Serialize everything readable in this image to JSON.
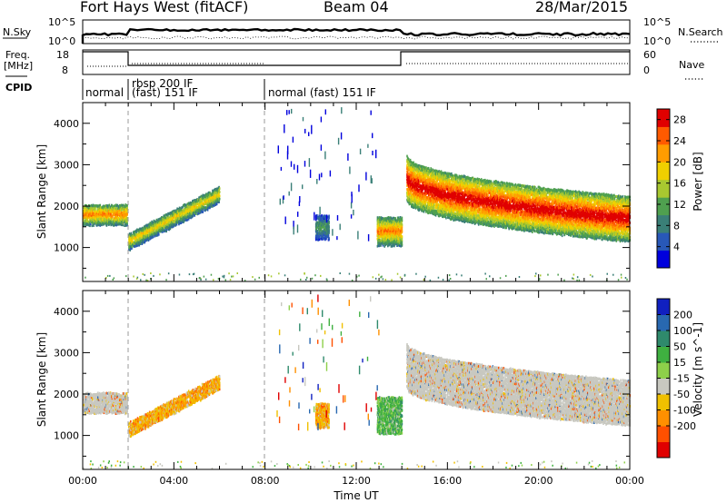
{
  "header": {
    "station": "Fort Hays West (fitACF)",
    "beam": "Beam 04",
    "date": "28/Mar/2015"
  },
  "top_panels": {
    "nsky_label": "N.Sky",
    "nsky_ticks": [
      "10^5",
      "10^0"
    ],
    "nsearch_label": "N.Search",
    "nsearch_ticks": [
      "10^5",
      "10^0"
    ],
    "freq_label": "Freq.",
    "freq_unit": "[MHz]",
    "freq_ticks": [
      "18",
      "8"
    ],
    "nave_label": "Nave",
    "nave_ticks": [
      "60",
      "0"
    ],
    "cpid_label": "CPID",
    "cpid_segments": [
      {
        "start": 0.0,
        "text": "normal"
      },
      {
        "start": 2.0,
        "text": "rbsp 200 IF"
      },
      {
        "start": 2.0,
        "text": "(fast) 151 IF"
      },
      {
        "start": 8.0,
        "text": "normal (fast) 151 IF"
      }
    ]
  },
  "chart_data": [
    {
      "type": "heatmap",
      "title": "",
      "ylabel": "Slant Range [km]",
      "xlabel": "",
      "x_units": "hours UT",
      "xlim": [
        0,
        24
      ],
      "ylim": [
        180,
        4500
      ],
      "y_ticks": [
        1000,
        2000,
        3000,
        4000
      ],
      "x_ticks": [
        0,
        4,
        8,
        12,
        16,
        20,
        24
      ],
      "colorbar": {
        "label": "Power [dB]",
        "ticks": [
          4,
          8,
          12,
          16,
          20,
          24,
          28
        ],
        "range": [
          0,
          30
        ],
        "colors": [
          "#0000dd",
          "#2858b8",
          "#3a7f77",
          "#4fa04f",
          "#a8c830",
          "#f0d000",
          "#ff9c00",
          "#ff5a00",
          "#e00000"
        ]
      },
      "regions": [
        {
          "name": "early-band",
          "t_start": 0.0,
          "t_end": 1.95,
          "center_km": 1800,
          "width_km": 500,
          "peak_db": 22
        },
        {
          "name": "rising-band",
          "t_start": 2.0,
          "t_end": 6.0,
          "center_km_start": 1150,
          "center_km_end": 2300,
          "width_km": 400,
          "peak_db": 18
        },
        {
          "name": "mid-patch",
          "t_start": 10.2,
          "t_end": 10.8,
          "center_km": 1500,
          "width_km": 600,
          "peak_db": 10
        },
        {
          "name": "pre-gap-band",
          "t_start": 12.9,
          "t_end": 14.0,
          "center_km": 1400,
          "width_km": 700,
          "peak_db": 22
        },
        {
          "name": "main-band",
          "t_start": 14.2,
          "t_end": 24.0,
          "center_km_start": 2700,
          "center_km_end": 1700,
          "width_km": 1100,
          "peak_db": 28
        }
      ]
    },
    {
      "type": "heatmap",
      "title": "",
      "ylabel": "Slant Range [km]",
      "xlabel": "Time UT",
      "x_units": "hours UT",
      "xlim": [
        0,
        24
      ],
      "ylim": [
        180,
        4500
      ],
      "y_ticks": [
        1000,
        2000,
        3000,
        4000
      ],
      "x_ticks": [
        0,
        4,
        8,
        12,
        16,
        20,
        24
      ],
      "x_tick_labels": [
        "00:00",
        "04:00",
        "08:00",
        "12:00",
        "16:00",
        "20:00",
        "00:00"
      ],
      "colorbar": {
        "label": "Velocity [m s^-1]",
        "ticks": [
          200,
          100,
          50,
          15,
          -15,
          -50,
          -100,
          -200
        ],
        "colors": [
          "#1020c0",
          "#2868b0",
          "#2f8a6c",
          "#3fb040",
          "#8ed04a",
          "#c8c8c0",
          "#f0c000",
          "#ff9000",
          "#ff5000",
          "#e00000"
        ]
      },
      "regions": [
        {
          "name": "early-band",
          "t_start": 0.0,
          "t_end": 1.95,
          "center_km": 1800,
          "width_km": 500,
          "dominant": "ground-scatter"
        },
        {
          "name": "rising-band",
          "t_start": 2.0,
          "t_end": 6.0,
          "center_km_start": 1150,
          "center_km_end": 2300,
          "width_km": 350,
          "dominant": "-50"
        },
        {
          "name": "mid-patch",
          "t_start": 10.2,
          "t_end": 10.8,
          "center_km": 1500,
          "width_km": 600,
          "dominant": "-50"
        },
        {
          "name": "pre-gap-band",
          "t_start": 12.9,
          "t_end": 14.0,
          "center_km": 1500,
          "width_km": 900,
          "dominant": "15"
        },
        {
          "name": "main-band",
          "t_start": 14.2,
          "t_end": 24.0,
          "center_km_start": 2700,
          "center_km_end": 1800,
          "width_km": 1100,
          "dominant": "ground-scatter"
        }
      ]
    }
  ],
  "colors": {
    "marker": "#888888"
  }
}
